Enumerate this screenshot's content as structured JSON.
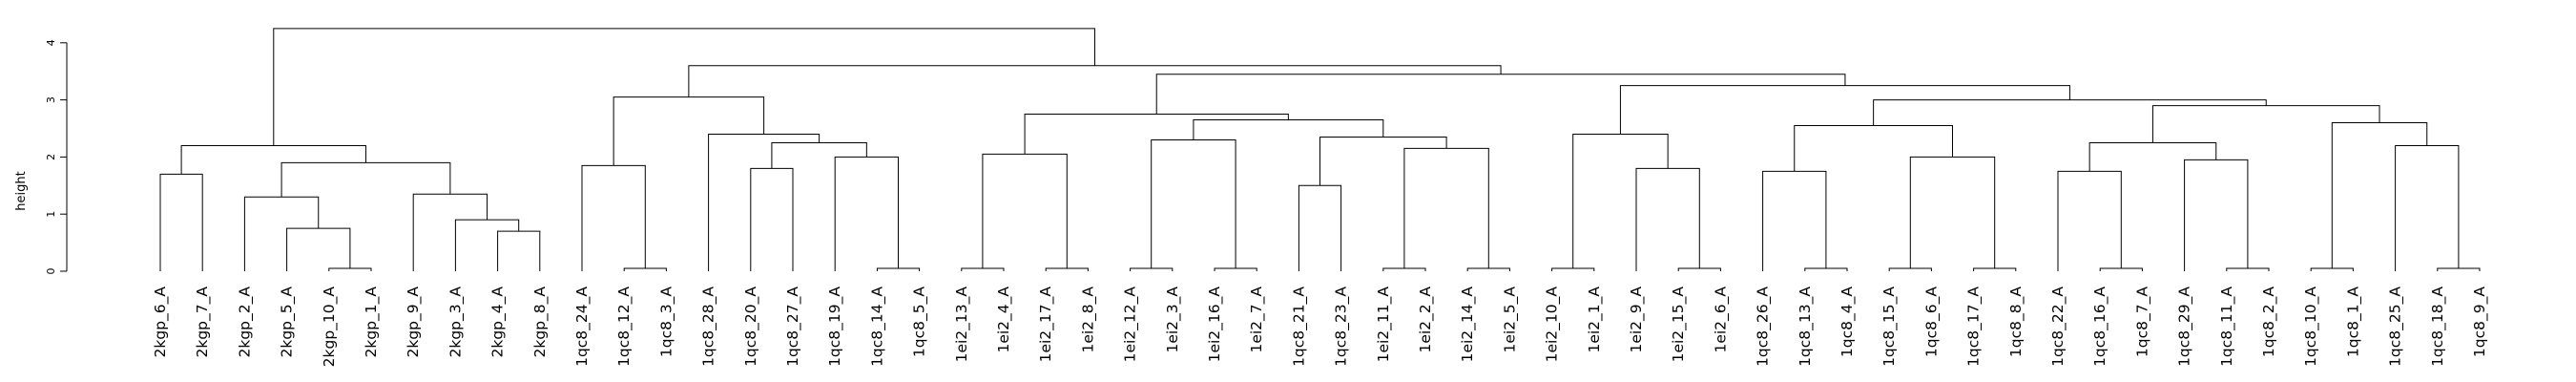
{
  "chart_data": {
    "type": "dendrogram",
    "title": "",
    "xlabel": "",
    "ylabel": "height",
    "ylim": [
      0,
      4.4
    ],
    "yticks": [
      "0",
      "1",
      "2",
      "3",
      "4"
    ],
    "leaves": [
      "2kgp_6_A",
      "2kgp_7_A",
      "2kgp_2_A",
      "2kgp_5_A",
      "2kgp_10_A",
      "2kgp_1_A",
      "2kgp_9_A",
      "2kgp_3_A",
      "2kgp_4_A",
      "2kgp_8_A",
      "1qc8_24_A",
      "1qc8_12_A",
      "1qc8_3_A",
      "1qc8_28_A",
      "1qc8_20_A",
      "1qc8_27_A",
      "1qc8_19_A",
      "1qc8_14_A",
      "1qc8_5_A",
      "1ei2_13_A",
      "1ei2_4_A",
      "1ei2_17_A",
      "1ei2_8_A",
      "1ei2_12_A",
      "1ei2_3_A",
      "1ei2_16_A",
      "1ei2_7_A",
      "1qc8_21_A",
      "1qc8_23_A",
      "1ei2_11_A",
      "1ei2_2_A",
      "1ei2_14_A",
      "1ei2_5_A",
      "1ei2_10_A",
      "1ei2_1_A",
      "1ei2_9_A",
      "1ei2_15_A",
      "1ei2_6_A",
      "1qc8_26_A",
      "1qc8_13_A",
      "1qc8_4_A",
      "1qc8_15_A",
      "1qc8_6_A",
      "1qc8_17_A",
      "1qc8_8_A",
      "1qc8_22_A",
      "1qc8_16_A",
      "1qc8_7_A",
      "1qc8_29_A",
      "1qc8_11_A",
      "1qc8_2_A",
      "1qc8_10_A",
      "1qc8_1_A",
      "1qc8_25_A",
      "1qc8_18_A",
      "1qc8_9_A"
    ],
    "merges": [
      {
        "a": "L0",
        "b": "L1",
        "height": 1.7
      },
      {
        "a": "L5",
        "b": "L4",
        "height": 0.05
      },
      {
        "a": "L3",
        "b": "M1",
        "height": 0.75
      },
      {
        "a": "L2",
        "b": "M2",
        "height": 1.3
      },
      {
        "a": "L9",
        "b": "L8",
        "height": 0.7
      },
      {
        "a": "L7",
        "b": "M4",
        "height": 0.9
      },
      {
        "a": "L6",
        "b": "M5",
        "height": 1.35
      },
      {
        "a": "M3",
        "b": "M6",
        "height": 1.9
      },
      {
        "a": "M0",
        "b": "M7",
        "height": 2.2
      },
      {
        "a": "L12",
        "b": "L11",
        "height": 0.05
      },
      {
        "a": "L10",
        "b": "M9",
        "height": 1.85
      },
      {
        "a": "L14",
        "b": "L15",
        "height": 1.8
      },
      {
        "a": "L18",
        "b": "L17",
        "height": 0.05
      },
      {
        "a": "L16",
        "b": "M12",
        "height": 2.0
      },
      {
        "a": "M11",
        "b": "M13",
        "height": 2.25
      },
      {
        "a": "L13",
        "b": "M14",
        "height": 2.4
      },
      {
        "a": "M10",
        "b": "M15",
        "height": 3.05
      },
      {
        "a": "L20",
        "b": "L19",
        "height": 0.05
      },
      {
        "a": "L22",
        "b": "L21",
        "height": 0.05
      },
      {
        "a": "M17",
        "b": "M18",
        "height": 2.05
      },
      {
        "a": "L24",
        "b": "L23",
        "height": 0.05
      },
      {
        "a": "L26",
        "b": "L25",
        "height": 0.05
      },
      {
        "a": "M20",
        "b": "M21",
        "height": 2.3
      },
      {
        "a": "L27",
        "b": "L28",
        "height": 1.5
      },
      {
        "a": "L30",
        "b": "L29",
        "height": 0.05
      },
      {
        "a": "L32",
        "b": "L31",
        "height": 0.05
      },
      {
        "a": "M24",
        "b": "M25",
        "height": 2.15
      },
      {
        "a": "M23",
        "b": "M26",
        "height": 2.35
      },
      {
        "a": "M22",
        "b": "M27",
        "height": 2.65
      },
      {
        "a": "M19",
        "b": "M28",
        "height": 2.75
      },
      {
        "a": "L34",
        "b": "L33",
        "height": 0.05
      },
      {
        "a": "L37",
        "b": "L36",
        "height": 0.05
      },
      {
        "a": "L35",
        "b": "M31",
        "height": 1.8
      },
      {
        "a": "M30",
        "b": "M32",
        "height": 2.4
      },
      {
        "a": "L40",
        "b": "L39",
        "height": 0.05
      },
      {
        "a": "L38",
        "b": "M34",
        "height": 1.75
      },
      {
        "a": "L42",
        "b": "L41",
        "height": 0.05
      },
      {
        "a": "L44",
        "b": "L43",
        "height": 0.05
      },
      {
        "a": "M36",
        "b": "M37",
        "height": 2.0
      },
      {
        "a": "M35",
        "b": "M38",
        "height": 2.55
      },
      {
        "a": "L47",
        "b": "L46",
        "height": 0.05
      },
      {
        "a": "L45",
        "b": "M40",
        "height": 1.75
      },
      {
        "a": "L50",
        "b": "L49",
        "height": 0.05
      },
      {
        "a": "L48",
        "b": "M42",
        "height": 1.95
      },
      {
        "a": "M41",
        "b": "M43",
        "height": 2.25
      },
      {
        "a": "L52",
        "b": "L51",
        "height": 0.05
      },
      {
        "a": "L55",
        "b": "L54",
        "height": 0.05
      },
      {
        "a": "L53",
        "b": "M46",
        "height": 2.2
      },
      {
        "a": "M45",
        "b": "M47",
        "height": 2.6
      },
      {
        "a": "M44",
        "b": "M48",
        "height": 2.9
      },
      {
        "a": "M39",
        "b": "M49",
        "height": 3.0
      },
      {
        "a": "M33",
        "b": "M50",
        "height": 3.25
      },
      {
        "a": "M29",
        "b": "M51",
        "height": 3.45
      },
      {
        "a": "M16",
        "b": "M52",
        "height": 3.6
      },
      {
        "a": "M8",
        "b": "M53",
        "height": 4.25
      }
    ]
  }
}
